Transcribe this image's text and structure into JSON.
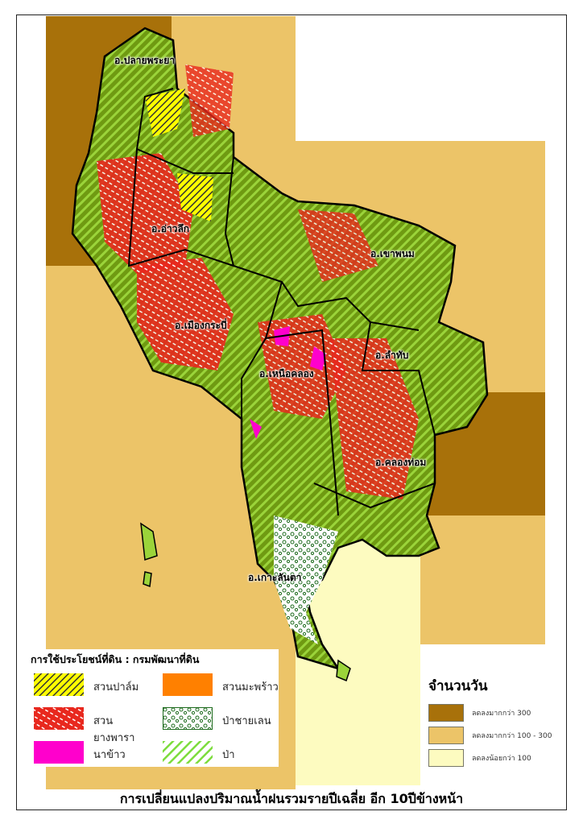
{
  "title": "การเปลี่ยนแปลงปริมาณน้ำฝนรวมรายปีเฉลี่ย อีก 10ปีข้างหน้า",
  "districts": [
    "อ.ปลายพระยา",
    "อ.อ่าวลึก",
    "อ.เขาพนม",
    "อ.เมืองกระบี่",
    "อ.ลำทับ",
    "อ.เหนือคลอง",
    "อ.คลองท่อม",
    "อ.เกาะลันตา"
  ],
  "land_use_legend": {
    "title": "การใช้ประโยชน์ที่ดิน : กรมพัฒนาที่ดิน",
    "items": [
      {
        "label": "สวนปาล์ม",
        "color": "#ffff00"
      },
      {
        "label": "สวนมะพร้าว",
        "color": "#ff8000"
      },
      {
        "label": "สวนยางพารา",
        "color": "#e8281e"
      },
      {
        "label": "ป่าชายเลน",
        "color": "#1e6b1e"
      },
      {
        "label": "นาข้าว",
        "color": "#ff00cc"
      },
      {
        "label": "ป่า",
        "color": "#7cdc3c"
      }
    ]
  },
  "days_legend": {
    "title": "จำนวนวัน",
    "items": [
      {
        "label": "ลดลงมากกว่า 300",
        "color": "#a8710a"
      },
      {
        "label": "ลดลงมากกว่า 100 - 300",
        "color": "#ecc468"
      },
      {
        "label": "ลดลงน้อยกว่า 100",
        "color": "#fdfbc0"
      }
    ]
  }
}
